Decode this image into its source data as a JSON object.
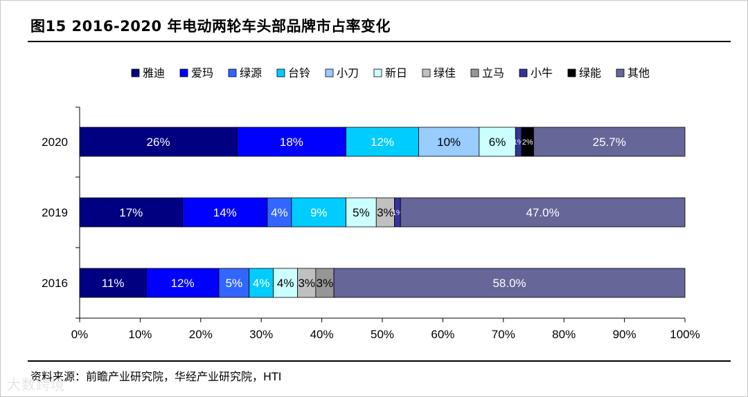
{
  "header": {
    "title": "图15 2016-2020 年电动两轮车头部品牌市占率变化"
  },
  "footer": {
    "source": "资料来源：前瞻产业研究院，华经产业研究院，HTI",
    "watermark": "大数跨境"
  },
  "colors": {
    "series": [
      "#000080",
      "#0000FF",
      "#3366FF",
      "#00CCFF",
      "#99CCFF",
      "#CCFFFF",
      "#C0C0C0",
      "#969696",
      "#333399",
      "#000000",
      "#666699"
    ],
    "bar_label": "#ffffff",
    "bar_label_light": "#000000"
  },
  "chart_data": {
    "type": "bar",
    "orientation": "horizontal",
    "stacked": true,
    "categories": [
      "2020",
      "2019",
      "2016"
    ],
    "xlim": [
      0,
      100
    ],
    "xticks": [
      "0%",
      "10%",
      "20%",
      "30%",
      "40%",
      "50%",
      "60%",
      "70%",
      "80%",
      "90%",
      "100%"
    ],
    "legend_position": "top",
    "grid": false,
    "series": [
      {
        "name": "雅迪",
        "values": [
          26,
          17,
          11
        ],
        "labels": [
          "26%",
          "17%",
          "11%"
        ]
      },
      {
        "name": "爱玛",
        "values": [
          18,
          14,
          12
        ],
        "labels": [
          "18%",
          "14%",
          "12%"
        ]
      },
      {
        "name": "绿源",
        "values": [
          0,
          4,
          5
        ],
        "labels": [
          "",
          "4%",
          "5%"
        ]
      },
      {
        "name": "台铃",
        "values": [
          12,
          9,
          4
        ],
        "labels": [
          "12%",
          "9%",
          "4%"
        ]
      },
      {
        "name": "小刀",
        "values": [
          10,
          0,
          0
        ],
        "labels": [
          "10%",
          "",
          ""
        ]
      },
      {
        "name": "新日",
        "values": [
          6,
          5,
          4
        ],
        "labels": [
          "6%",
          "5%",
          "4%"
        ]
      },
      {
        "name": "绿佳",
        "values": [
          0,
          3,
          3
        ],
        "labels": [
          "",
          "3%",
          "3%"
        ]
      },
      {
        "name": "立马",
        "values": [
          0,
          0,
          3
        ],
        "labels": [
          "",
          "",
          "3%"
        ]
      },
      {
        "name": "小牛",
        "values": [
          1,
          1,
          0
        ],
        "labels": [
          "1%",
          "1%",
          ""
        ]
      },
      {
        "name": "绿能",
        "values": [
          2,
          0,
          0
        ],
        "labels": [
          "2%",
          "",
          ""
        ]
      },
      {
        "name": "其他",
        "values": [
          25.7,
          47.0,
          58.0
        ],
        "labels": [
          "25.7%",
          "47.0%",
          "58.0%"
        ]
      }
    ]
  }
}
